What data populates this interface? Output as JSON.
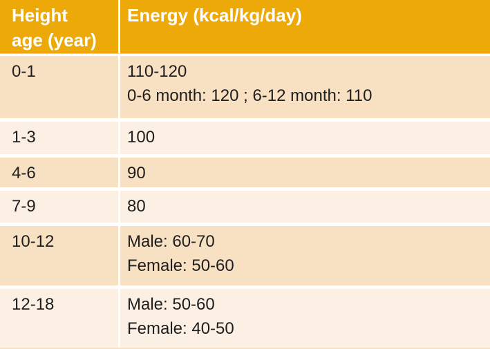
{
  "colors": {
    "header_bg": "#EDA908",
    "header_edge": "#F3D06B",
    "header_text": "#FFFFFF",
    "row_dark": "#F8E0C2",
    "row_light": "#FBF0E3",
    "body_text": "#1E1E1E",
    "gap": "#FFFFFF"
  },
  "table": {
    "header": {
      "col1_line1": "Height",
      "col1_line2": "age (year)",
      "col2": "Energy (kcal/kg/day)"
    },
    "rows": [
      {
        "age": "0-1",
        "energy_line1": "110-120",
        "energy_line2": "0-6 month: 120 ; 6-12 month: 110"
      },
      {
        "age": "1-3",
        "energy_line1": "100",
        "energy_line2": ""
      },
      {
        "age": "4-6",
        "energy_line1": "90",
        "energy_line2": ""
      },
      {
        "age": "7-9",
        "energy_line1": "80",
        "energy_line2": ""
      },
      {
        "age": "10-12",
        "energy_line1": "Male: 60-70",
        "energy_line2": "Female: 50-60"
      },
      {
        "age": "12-18",
        "energy_line1": "Male: 50-60",
        "energy_line2": "Female: 40-50"
      }
    ]
  },
  "chart_data": {
    "type": "table",
    "title": "",
    "columns": [
      "Height age (year)",
      "Energy (kcal/kg/day)"
    ],
    "rows": [
      [
        "0-1",
        "110-120 | 0-6 month: 120 ; 6-12 month: 110"
      ],
      [
        "1-3",
        "100"
      ],
      [
        "4-6",
        "90"
      ],
      [
        "7-9",
        "80"
      ],
      [
        "10-12",
        "Male: 60-70 | Female: 50-60"
      ],
      [
        "12-18",
        "Male: 50-60 | Female: 40-50"
      ]
    ],
    "layout": {
      "header_bg": "#EDA908",
      "banding": [
        "dark",
        "light",
        "dark",
        "light",
        "dark",
        "light"
      ],
      "grid": "white row/column separators"
    }
  }
}
